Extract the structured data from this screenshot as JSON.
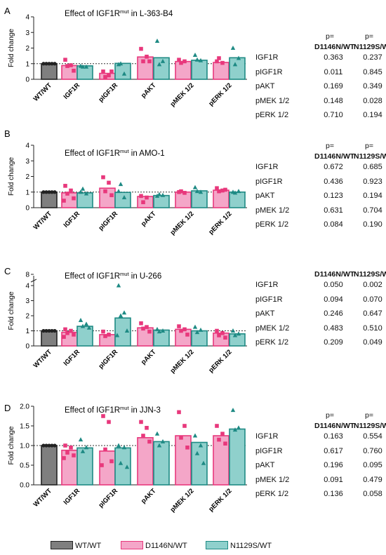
{
  "legend": {
    "items": [
      {
        "label": "WT/WT",
        "fill": "#7f7f7f",
        "stroke": "#222222"
      },
      {
        "label": "D1146N/WT",
        "fill": "#f4a6c8",
        "stroke": "#e8387c"
      },
      {
        "label": "N1129S/WT",
        "fill": "#8fd0cc",
        "stroke": "#1e8a84"
      }
    ]
  },
  "colors": {
    "wt": "#7f7f7f",
    "d1146n": "#f4a6c8",
    "n1129s": "#8fd0cc",
    "d1146n_point": "#e8387c",
    "n1129s_point": "#1e8a84"
  },
  "panels": [
    {
      "letter": "A",
      "title_prefix": "Effect of IGF1R",
      "title_sup": "mut",
      "title_suffix": " in L-363-B4",
      "p_header": {
        "p1": "p=",
        "p2": "p=",
        "col1": "D1146N/WT",
        "col2": "N1129S/WT"
      },
      "p_values": [
        {
          "label": "IGF1R",
          "d1146n": "0.363",
          "n1129s": "0.237"
        },
        {
          "label": "pIGF1R",
          "d1146n": "0.011",
          "n1129s": "0.845"
        },
        {
          "label": "pAKT",
          "d1146n": "0.169",
          "n1129s": "0.349"
        },
        {
          "label": "pMEK 1/2",
          "d1146n": "0.148",
          "n1129s": "0.028"
        },
        {
          "label": "pERK 1/2",
          "d1146n": "0.710",
          "n1129s": "0.194"
        }
      ]
    },
    {
      "letter": "B",
      "title_prefix": "Effect of IGF1R",
      "title_sup": "mut",
      "title_suffix": " in AMO-1",
      "p_header": {
        "p1": "p=",
        "p2": "p=",
        "col1": "D1146N/WT",
        "col2": "N1129S/WT"
      },
      "p_values": [
        {
          "label": "IGF1R",
          "d1146n": "0.672",
          "n1129s": "0.685"
        },
        {
          "label": "pIGF1R",
          "d1146n": "0.436",
          "n1129s": "0.923"
        },
        {
          "label": "pAKT",
          "d1146n": "0.123",
          "n1129s": "0.194"
        },
        {
          "label": "pMEK 1/2",
          "d1146n": "0.631",
          "n1129s": "0.704"
        },
        {
          "label": "pERK 1/2",
          "d1146n": "0.084",
          "n1129s": "0.190"
        }
      ]
    },
    {
      "letter": "C",
      "title_prefix": "Effect of IGF1R",
      "title_sup": "mut",
      "title_suffix": " in U-266",
      "p_header": {
        "p1": "",
        "p2": "",
        "col1": "D1146N/WT",
        "col2": "N1129S/WT"
      },
      "p_values": [
        {
          "label": "IGF1R",
          "d1146n": "0.050",
          "n1129s": "0.002"
        },
        {
          "label": "pIGF1R",
          "d1146n": "0.094",
          "n1129s": "0.070"
        },
        {
          "label": "pAKT",
          "d1146n": "0.246",
          "n1129s": "0.647"
        },
        {
          "label": "pMEK 1/2",
          "d1146n": "0.483",
          "n1129s": "0.510"
        },
        {
          "label": "pERK 1/2",
          "d1146n": "0.209",
          "n1129s": "0.049"
        }
      ]
    },
    {
      "letter": "D",
      "title_prefix": "Effect of IGF1R",
      "title_sup": "mut",
      "title_suffix": " in JJN-3",
      "p_header": {
        "p1": "p=",
        "p2": "p=",
        "col1": "D1146N/WT",
        "col2": "N1129S/WT"
      },
      "p_values": [
        {
          "label": "IGF1R",
          "d1146n": "0.163",
          "n1129s": "0.554"
        },
        {
          "label": "pIGF1R",
          "d1146n": "0.617",
          "n1129s": "0.760"
        },
        {
          "label": "pAKT",
          "d1146n": "0.196",
          "n1129s": "0.095"
        },
        {
          "label": "pMEK 1/2",
          "d1146n": "0.091",
          "n1129s": "0.479"
        },
        {
          "label": "pERK 1/2",
          "d1146n": "0.136",
          "n1129s": "0.058"
        }
      ]
    }
  ],
  "chart_data": [
    {
      "type": "bar",
      "title": "Effect of IGF1Rmut in L-363-B4",
      "ylabel": "Fold change",
      "ylim": [
        0,
        4
      ],
      "yticks": [
        "0",
        "1",
        "2",
        "3",
        "4"
      ],
      "reference_line": 1,
      "categories": [
        "WT/WT",
        "IGF1R",
        "pIGF1R",
        "pAKT",
        "pMEK 1/2",
        "pERK 1/2"
      ],
      "series": [
        {
          "name": "WT/WT",
          "values": [
            1.0,
            null,
            null,
            null,
            null,
            null
          ]
        },
        {
          "name": "D1146N/WT",
          "values": [
            null,
            0.88,
            0.38,
            1.43,
            1.14,
            1.08
          ]
        },
        {
          "name": "N1129S/WT",
          "values": [
            null,
            0.86,
            1.02,
            1.38,
            1.22,
            1.38
          ]
        }
      ],
      "points": {
        "WT/WT": [
          [
            1,
            1,
            1,
            1,
            1
          ]
        ],
        "D1146N/WT": [
          [
            1.25,
            0.9,
            0.85,
            0.55
          ],
          [
            0.5,
            0.25,
            0.15,
            0.5
          ],
          [
            1.95,
            1.45,
            1.15,
            1.15
          ],
          [
            1.25,
            1.15,
            1.05
          ],
          [
            1.15,
            1.05,
            1.35
          ]
        ],
        "N1129S/WT": [
          [
            0.85,
            0.8,
            0.8
          ],
          [
            0.95,
            0.35,
            1.0
          ],
          [
            2.45,
            1.15,
            0.95
          ],
          [
            1.55,
            1.2,
            1.25
          ],
          [
            2.0,
            1.35,
            0.95
          ]
        ]
      }
    },
    {
      "type": "bar",
      "title": "Effect of IGF1Rmut in AMO-1",
      "ylabel": "Fold change",
      "ylim": [
        0,
        4
      ],
      "yticks": [
        "0",
        "1",
        "2",
        "3",
        "4"
      ],
      "reference_line": 1,
      "categories": [
        "WT/WT",
        "IGF1R",
        "pIGF1R",
        "pAKT",
        "pMEK 1/2",
        "pERK 1/2"
      ],
      "series": [
        {
          "name": "WT/WT",
          "values": [
            1.0,
            null,
            null,
            null,
            null,
            null
          ]
        },
        {
          "name": "D1146N/WT",
          "values": [
            null,
            0.95,
            1.25,
            0.72,
            1.0,
            1.12
          ]
        },
        {
          "name": "N1129S/WT",
          "values": [
            null,
            0.95,
            0.98,
            0.78,
            1.08,
            1.0
          ]
        }
      ],
      "points": {
        "WT/WT": [
          [
            1,
            1,
            1,
            1,
            1
          ]
        ],
        "D1146N/WT": [
          [
            1.4,
            1.1,
            0.9,
            0.6,
            0.45
          ],
          [
            1.95,
            1.6,
            1.05,
            0.8
          ],
          [
            0.75,
            0.65,
            0.35
          ],
          [
            1.0,
            0.95,
            1.05
          ],
          [
            1.25,
            1.1,
            1.05,
            1.15
          ]
        ],
        "N1129S/WT": [
          [
            1.0,
            0.9,
            1.2
          ],
          [
            1.05,
            0.65,
            1.5
          ],
          [
            0.75,
            0.8,
            0.85
          ],
          [
            1.3,
            1.0,
            1.05
          ],
          [
            1.0,
            1.05,
            0.95
          ]
        ]
      }
    },
    {
      "type": "bar",
      "title": "Effect of IGF1Rmut in U-266",
      "ylabel": "Fold change",
      "ylim": [
        0,
        8
      ],
      "y_axis_break": [
        4,
        7
      ],
      "yticks": [
        "0",
        "1",
        "2",
        "3",
        "4",
        "8"
      ],
      "reference_line": 1,
      "categories": [
        "WT/WT",
        "IGF1R",
        "pIGF1R",
        "pAKT",
        "pMEK 1/2",
        "pERK 1/2"
      ],
      "series": [
        {
          "name": "WT/WT",
          "values": [
            1.0,
            null,
            null,
            null,
            null,
            null
          ]
        },
        {
          "name": "D1146N/WT",
          "values": [
            null,
            0.9,
            0.75,
            1.2,
            1.1,
            0.85
          ]
        },
        {
          "name": "N1129S/WT",
          "values": [
            null,
            1.3,
            1.85,
            1.05,
            1.0,
            0.8
          ]
        }
      ],
      "points": {
        "WT/WT": [
          [
            1,
            1,
            1,
            1,
            1
          ]
        ],
        "D1146N/WT": [
          [
            1.1,
            1.0,
            0.85,
            0.75,
            0.6
          ],
          [
            0.95,
            0.75,
            0.65
          ],
          [
            1.5,
            1.25,
            1.15,
            0.95
          ],
          [
            1.3,
            1.1,
            1.0,
            0.75
          ],
          [
            1.0,
            0.85,
            0.7,
            0.55
          ]
        ],
        "N1129S/WT": [
          [
            1.7,
            1.45,
            1.3,
            1.2
          ],
          [
            4.0,
            2.2,
            2.0,
            1.0,
            0.7
          ],
          [
            1.1,
            1.0,
            0.95
          ],
          [
            1.25,
            1.05,
            0.9
          ],
          [
            1.0,
            0.8,
            0.7
          ]
        ]
      }
    },
    {
      "type": "bar",
      "title": "Effect of IGF1Rmut in JJN-3",
      "ylabel": "Fold change",
      "ylim": [
        0,
        2.0
      ],
      "yticks": [
        "0.0",
        "0.5",
        "1.0",
        "1.5",
        "2.0"
      ],
      "reference_line": 1.0,
      "categories": [
        "WT/WT",
        "IGF1R",
        "pIGF1R",
        "pAKT",
        "pMEK 1/2",
        "pERK 1/2"
      ],
      "series": [
        {
          "name": "WT/WT",
          "values": [
            1.0,
            null,
            null,
            null,
            null,
            null
          ]
        },
        {
          "name": "D1146N/WT",
          "values": [
            null,
            0.88,
            0.86,
            1.2,
            1.25,
            1.25
          ]
        },
        {
          "name": "N1129S/WT",
          "values": [
            null,
            0.94,
            0.94,
            1.1,
            1.08,
            1.42
          ]
        }
      ],
      "points": {
        "WT/WT": [
          [
            1,
            1,
            1,
            1,
            1
          ]
        ],
        "D1146N/WT": [
          [
            1.0,
            0.95,
            0.82,
            0.75,
            0.68
          ],
          [
            1.75,
            1.6,
            0.9,
            0.6,
            0.5
          ],
          [
            1.6,
            1.45,
            1.25,
            1.1
          ],
          [
            1.85,
            1.5,
            1.2,
            0.95
          ],
          [
            1.5,
            1.3,
            1.15,
            1.05
          ]
        ],
        "N1129S/WT": [
          [
            1.15,
            0.95,
            0.85
          ],
          [
            1.0,
            0.95,
            0.55,
            0.45
          ],
          [
            1.3,
            1.1,
            1.0
          ],
          [
            1.25,
            1.0,
            0.8,
            0.55
          ],
          [
            1.9,
            1.45,
            1.4
          ]
        ]
      }
    }
  ]
}
